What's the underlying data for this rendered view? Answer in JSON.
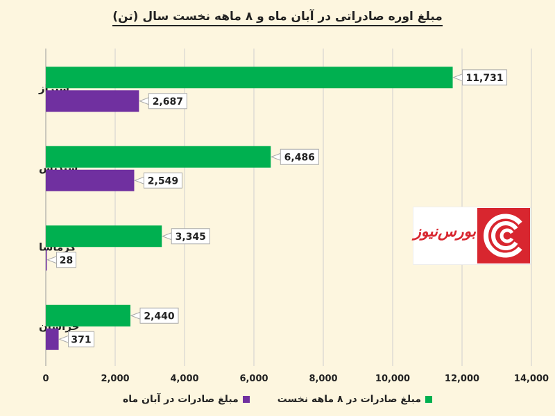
{
  "chart_data": {
    "type": "bar",
    "orientation": "horizontal",
    "title": "مبلغ اوره صادراتی در آبان ماه و ۸ ماهه نخست سال (تن)",
    "categories": [
      "شیراز",
      "شپدیس",
      "کرماشا",
      "خراسان"
    ],
    "series": [
      {
        "name": "مبلغ صادرات در ۸ ماهه نخست",
        "color": "#00b050",
        "values": [
          11731,
          6486,
          3345,
          2440
        ],
        "labels": [
          "11,731",
          "6,486",
          "3,345",
          "2,440"
        ]
      },
      {
        "name": "مبلغ صادرات در آبان ماه",
        "color": "#7030a0",
        "values": [
          2687,
          2549,
          28,
          371
        ],
        "labels": [
          "2,687",
          "2,549",
          "28",
          "371"
        ]
      }
    ],
    "xlim": [
      0,
      14000
    ],
    "xticks": [
      "0",
      "2,000",
      "4,000",
      "6,000",
      "8,000",
      "10,000",
      "12,000",
      "14,000"
    ],
    "grid": true,
    "legend_position": "bottom"
  },
  "logo": {
    "text": "بورس‌نیوز",
    "color": "#d8262f"
  }
}
